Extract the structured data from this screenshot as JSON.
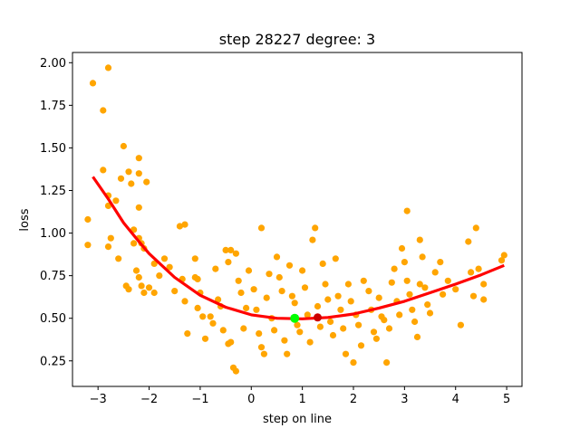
{
  "chart_data": {
    "type": "scatter",
    "title": "step 28227   degree: 3",
    "xlabel": "step on line",
    "ylabel": "loss",
    "xlim": [
      -3.5,
      5.3
    ],
    "ylim": [
      0.1,
      2.06
    ],
    "xticks": [
      -3,
      -2,
      -1,
      0,
      1,
      2,
      3,
      4,
      5
    ],
    "yticks": [
      0.25,
      0.5,
      0.75,
      1.0,
      1.25,
      1.5,
      1.75,
      2.0
    ],
    "ytick_labels": [
      "0.25",
      "0.50",
      "0.75",
      "1.00",
      "1.25",
      "1.50",
      "1.75",
      "2.00"
    ],
    "grid": false,
    "legend": "none",
    "colors": {
      "points": "#ffa500",
      "fit": "#ff0000",
      "min_marker": "#00ff00",
      "current_marker": "#cc0000"
    },
    "fit_curve": {
      "degree": 3,
      "x_range": [
        -3.1,
        4.95
      ],
      "points": [
        [
          -3.1,
          1.33
        ],
        [
          -2.8,
          1.2
        ],
        [
          -2.5,
          1.06
        ],
        [
          -2.2,
          0.95
        ],
        [
          -2.0,
          0.88
        ],
        [
          -1.5,
          0.74
        ],
        [
          -1.0,
          0.635
        ],
        [
          -0.5,
          0.565
        ],
        [
          0.0,
          0.52
        ],
        [
          0.5,
          0.5
        ],
        [
          1.0,
          0.497
        ],
        [
          1.5,
          0.505
        ],
        [
          2.0,
          0.525
        ],
        [
          2.5,
          0.56
        ],
        [
          3.0,
          0.6
        ],
        [
          3.5,
          0.65
        ],
        [
          4.0,
          0.7
        ],
        [
          4.5,
          0.755
        ],
        [
          4.95,
          0.81
        ]
      ]
    },
    "min_marker": {
      "x": 0.85,
      "y": 0.5
    },
    "current_marker": {
      "x": 1.3,
      "y": 0.505
    },
    "series": [
      {
        "points": [
          [
            -3.2,
            1.08
          ],
          [
            -3.2,
            0.93
          ],
          [
            -3.1,
            1.88
          ],
          [
            -2.9,
            1.72
          ],
          [
            -2.8,
            1.97
          ],
          [
            -2.9,
            1.37
          ],
          [
            -2.8,
            1.22
          ],
          [
            -2.8,
            1.16
          ],
          [
            -2.75,
            0.97
          ],
          [
            -2.8,
            0.92
          ],
          [
            -2.65,
            1.19
          ],
          [
            -2.6,
            0.85
          ],
          [
            -2.5,
            1.51
          ],
          [
            -2.55,
            1.32
          ],
          [
            -2.4,
            1.36
          ],
          [
            -2.35,
            1.29
          ],
          [
            -2.3,
            1.02
          ],
          [
            -2.2,
            1.44
          ],
          [
            -2.2,
            1.35
          ],
          [
            -2.2,
            1.15
          ],
          [
            -2.2,
            0.97
          ],
          [
            -2.15,
            0.94
          ],
          [
            -2.1,
            0.91
          ],
          [
            -2.05,
            1.3
          ],
          [
            -2.45,
            0.69
          ],
          [
            -2.4,
            0.67
          ],
          [
            -2.3,
            0.94
          ],
          [
            -2.25,
            0.78
          ],
          [
            -2.2,
            0.74
          ],
          [
            -2.15,
            0.69
          ],
          [
            -2.1,
            0.65
          ],
          [
            -2.0,
            0.68
          ],
          [
            -1.9,
            0.82
          ],
          [
            -1.9,
            0.65
          ],
          [
            -1.8,
            0.75
          ],
          [
            -1.7,
            0.85
          ],
          [
            -1.6,
            0.8
          ],
          [
            -1.5,
            0.66
          ],
          [
            -1.4,
            1.04
          ],
          [
            -1.3,
            1.05
          ],
          [
            -1.35,
            0.73
          ],
          [
            -1.3,
            0.6
          ],
          [
            -1.25,
            0.41
          ],
          [
            -1.1,
            0.85
          ],
          [
            -1.1,
            0.74
          ],
          [
            -1.05,
            0.73
          ],
          [
            -1.0,
            0.65
          ],
          [
            -1.05,
            0.56
          ],
          [
            -0.95,
            0.51
          ],
          [
            -0.9,
            0.38
          ],
          [
            -0.8,
            0.51
          ],
          [
            -0.75,
            0.47
          ],
          [
            -0.7,
            0.79
          ],
          [
            -0.65,
            0.61
          ],
          [
            -0.6,
            0.57
          ],
          [
            -0.55,
            0.43
          ],
          [
            -0.5,
            0.9
          ],
          [
            -0.45,
            0.83
          ],
          [
            -0.45,
            0.35
          ],
          [
            -0.4,
            0.9
          ],
          [
            -0.4,
            0.36
          ],
          [
            -0.35,
            0.21
          ],
          [
            -0.3,
            0.19
          ],
          [
            -0.3,
            0.88
          ],
          [
            -0.25,
            0.72
          ],
          [
            -0.2,
            0.65
          ],
          [
            -0.15,
            0.44
          ],
          [
            -0.1,
            0.56
          ],
          [
            -0.05,
            0.78
          ],
          [
            0.05,
            0.67
          ],
          [
            0.1,
            0.55
          ],
          [
            0.15,
            0.41
          ],
          [
            0.2,
            1.03
          ],
          [
            0.2,
            0.33
          ],
          [
            0.25,
            0.29
          ],
          [
            0.3,
            0.62
          ],
          [
            0.35,
            0.76
          ],
          [
            0.4,
            0.5
          ],
          [
            0.45,
            0.43
          ],
          [
            0.5,
            0.86
          ],
          [
            0.55,
            0.74
          ],
          [
            0.6,
            0.66
          ],
          [
            0.65,
            0.37
          ],
          [
            0.7,
            0.29
          ],
          [
            0.75,
            0.81
          ],
          [
            0.8,
            0.63
          ],
          [
            0.85,
            0.59
          ],
          [
            0.9,
            0.46
          ],
          [
            0.95,
            0.42
          ],
          [
            1.0,
            0.78
          ],
          [
            1.05,
            0.68
          ],
          [
            1.1,
            0.52
          ],
          [
            1.15,
            0.36
          ],
          [
            1.2,
            0.96
          ],
          [
            1.25,
            1.03
          ],
          [
            1.3,
            0.57
          ],
          [
            1.35,
            0.45
          ],
          [
            1.4,
            0.82
          ],
          [
            1.45,
            0.7
          ],
          [
            1.5,
            0.61
          ],
          [
            1.55,
            0.48
          ],
          [
            1.6,
            0.4
          ],
          [
            1.65,
            0.85
          ],
          [
            1.7,
            0.63
          ],
          [
            1.75,
            0.55
          ],
          [
            1.8,
            0.44
          ],
          [
            1.85,
            0.29
          ],
          [
            1.9,
            0.7
          ],
          [
            1.95,
            0.6
          ],
          [
            2.0,
            0.24
          ],
          [
            2.05,
            0.52
          ],
          [
            2.1,
            0.46
          ],
          [
            2.15,
            0.34
          ],
          [
            2.2,
            0.72
          ],
          [
            2.3,
            0.66
          ],
          [
            2.35,
            0.55
          ],
          [
            2.4,
            0.42
          ],
          [
            2.45,
            0.38
          ],
          [
            2.5,
            0.62
          ],
          [
            2.55,
            0.51
          ],
          [
            2.6,
            0.49
          ],
          [
            2.65,
            0.24
          ],
          [
            2.7,
            0.44
          ],
          [
            2.75,
            0.71
          ],
          [
            2.8,
            0.79
          ],
          [
            2.85,
            0.6
          ],
          [
            2.9,
            0.52
          ],
          [
            2.95,
            0.91
          ],
          [
            3.0,
            0.83
          ],
          [
            3.05,
            1.13
          ],
          [
            3.05,
            0.72
          ],
          [
            3.1,
            0.64
          ],
          [
            3.15,
            0.55
          ],
          [
            3.2,
            0.48
          ],
          [
            3.25,
            0.39
          ],
          [
            3.3,
            0.96
          ],
          [
            3.35,
            0.86
          ],
          [
            3.3,
            0.7
          ],
          [
            3.4,
            0.68
          ],
          [
            3.45,
            0.58
          ],
          [
            3.5,
            0.53
          ],
          [
            3.6,
            0.77
          ],
          [
            3.7,
            0.83
          ],
          [
            3.75,
            0.64
          ],
          [
            3.85,
            0.72
          ],
          [
            4.0,
            0.67
          ],
          [
            4.1,
            0.46
          ],
          [
            4.25,
            0.95
          ],
          [
            4.3,
            0.77
          ],
          [
            4.35,
            0.63
          ],
          [
            4.4,
            1.03
          ],
          [
            4.45,
            0.79
          ],
          [
            4.55,
            0.7
          ],
          [
            4.55,
            0.61
          ],
          [
            4.9,
            0.84
          ],
          [
            4.95,
            0.87
          ]
        ]
      }
    ]
  }
}
